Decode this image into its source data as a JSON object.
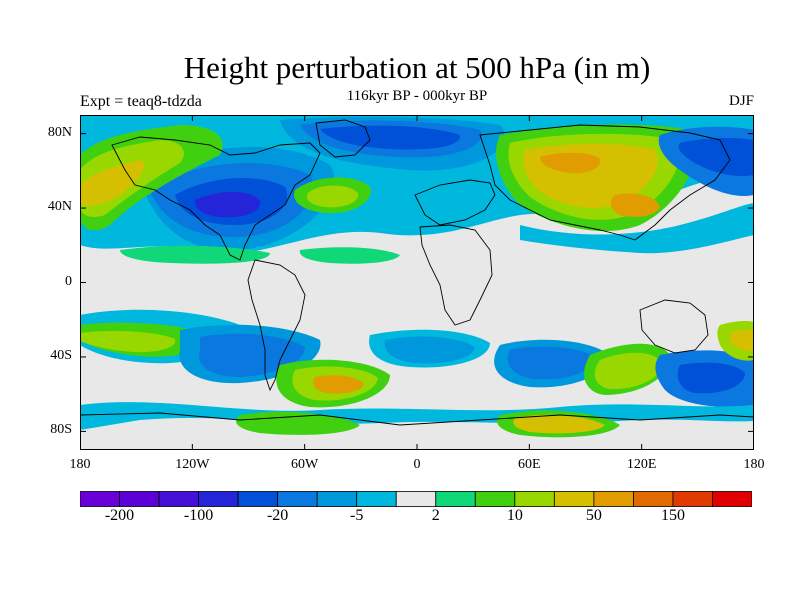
{
  "header": {
    "title": "Height perturbation at 500 hPa (in m)",
    "subtitle": "116kyr BP - 000kyr BP",
    "experiment": "Expt = teaq8-tdzda",
    "season": "DJF"
  },
  "axes": {
    "y_ticks": [
      {
        "label": "80N",
        "lat": 80
      },
      {
        "label": "40N",
        "lat": 40
      },
      {
        "label": "0",
        "lat": 0
      },
      {
        "label": "40S",
        "lat": -40
      },
      {
        "label": "80S",
        "lat": -80
      }
    ],
    "x_ticks": [
      {
        "label": "180",
        "lon": -180
      },
      {
        "label": "120W",
        "lon": -120
      },
      {
        "label": "60W",
        "lon": -60
      },
      {
        "label": "0",
        "lon": 0
      },
      {
        "label": "60E",
        "lon": 60
      },
      {
        "label": "120E",
        "lon": 120
      },
      {
        "label": "180",
        "lon": 180
      }
    ],
    "lon_range": [
      -180,
      180
    ],
    "lat_range": [
      -90,
      90
    ]
  },
  "colorbar": {
    "colors": [
      "#6a00d8",
      "#5b00d6",
      "#4410d8",
      "#2424d8",
      "#0050d8",
      "#0a78de",
      "#0098dc",
      "#00b8de",
      "#e8e8e8",
      "#10d878",
      "#40d010",
      "#98d800",
      "#d4c000",
      "#e09c00",
      "#e06a00",
      "#e03a00",
      "#e00000"
    ],
    "labels": [
      {
        "text": "-200",
        "boundary": 1
      },
      {
        "text": "-100",
        "boundary": 3
      },
      {
        "text": "-20",
        "boundary": 5
      },
      {
        "text": "-5",
        "boundary": 7
      },
      {
        "text": "2",
        "boundary": 9
      },
      {
        "text": "10",
        "boundary": 11
      },
      {
        "text": "50",
        "boundary": 13
      },
      {
        "text": "150",
        "boundary": 15
      }
    ]
  }
}
